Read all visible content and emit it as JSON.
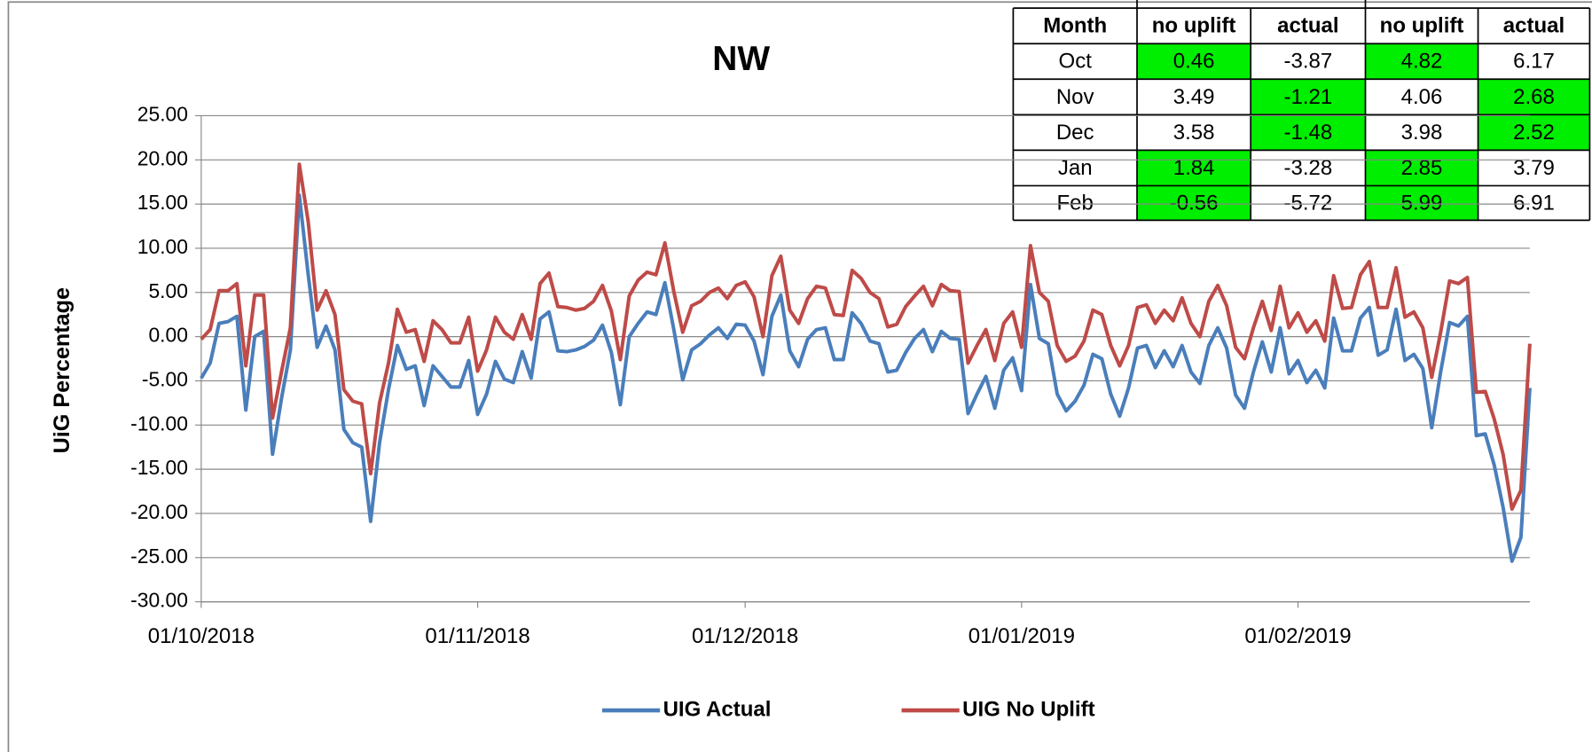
{
  "chart_data": {
    "type": "line",
    "title": "NW",
    "y_label": "UiG Percentage",
    "x": [
      "01/10/2018",
      "02/10/2018",
      "03/10/2018",
      "04/10/2018",
      "05/10/2018",
      "06/10/2018",
      "07/10/2018",
      "08/10/2018",
      "09/10/2018",
      "10/10/2018",
      "11/10/2018",
      "12/10/2018",
      "13/10/2018",
      "14/10/2018",
      "15/10/2018",
      "16/10/2018",
      "17/10/2018",
      "18/10/2018",
      "19/10/2018",
      "20/10/2018",
      "21/10/2018",
      "22/10/2018",
      "23/10/2018",
      "24/10/2018",
      "25/10/2018",
      "26/10/2018",
      "27/10/2018",
      "28/10/2018",
      "29/10/2018",
      "30/10/2018",
      "31/10/2018",
      "01/11/2018",
      "02/11/2018",
      "03/11/2018",
      "04/11/2018",
      "05/11/2018",
      "06/11/2018",
      "07/11/2018",
      "08/11/2018",
      "09/11/2018",
      "10/11/2018",
      "11/11/2018",
      "12/11/2018",
      "13/11/2018",
      "14/11/2018",
      "15/11/2018",
      "16/11/2018",
      "17/11/2018",
      "18/11/2018",
      "19/11/2018",
      "20/11/2018",
      "21/11/2018",
      "22/11/2018",
      "23/11/2018",
      "24/11/2018",
      "25/11/2018",
      "26/11/2018",
      "27/11/2018",
      "28/11/2018",
      "29/11/2018",
      "30/11/2018",
      "01/12/2018",
      "02/12/2018",
      "03/12/2018",
      "04/12/2018",
      "05/12/2018",
      "06/12/2018",
      "07/12/2018",
      "08/12/2018",
      "09/12/2018",
      "10/12/2018",
      "11/12/2018",
      "12/12/2018",
      "13/12/2018",
      "14/12/2018",
      "15/12/2018",
      "16/12/2018",
      "17/12/2018",
      "18/12/2018",
      "19/12/2018",
      "20/12/2018",
      "21/12/2018",
      "22/12/2018",
      "23/12/2018",
      "24/12/2018",
      "25/12/2018",
      "26/12/2018",
      "27/12/2018",
      "28/12/2018",
      "29/12/2018",
      "30/12/2018",
      "31/12/2018",
      "01/01/2019",
      "02/01/2019",
      "03/01/2019",
      "04/01/2019",
      "05/01/2019",
      "06/01/2019",
      "07/01/2019",
      "08/01/2019",
      "09/01/2019",
      "10/01/2019",
      "11/01/2019",
      "12/01/2019",
      "13/01/2019",
      "14/01/2019",
      "15/01/2019",
      "16/01/2019",
      "17/01/2019",
      "18/01/2019",
      "19/01/2019",
      "20/01/2019",
      "21/01/2019",
      "22/01/2019",
      "23/01/2019",
      "24/01/2019",
      "25/01/2019",
      "26/01/2019",
      "27/01/2019",
      "28/01/2019",
      "29/01/2019",
      "30/01/2019",
      "31/01/2019",
      "01/02/2019",
      "02/02/2019",
      "03/02/2019",
      "04/02/2019",
      "05/02/2019",
      "06/02/2019",
      "07/02/2019",
      "08/02/2019",
      "09/02/2019",
      "10/02/2019",
      "11/02/2019",
      "12/02/2019",
      "13/02/2019",
      "14/02/2019",
      "15/02/2019",
      "16/02/2019",
      "17/02/2019",
      "18/02/2019",
      "19/02/2019",
      "20/02/2019",
      "21/02/2019",
      "22/02/2019",
      "23/02/2019",
      "24/02/2019",
      "25/02/2019",
      "26/02/2019",
      "27/02/2019"
    ],
    "series": [
      {
        "name": "UIG Actual",
        "color": "#4a7ebb",
        "values": [
          -4.7,
          -3,
          1.5,
          1.7,
          2.3,
          -8.3,
          0,
          0.6,
          -13.3,
          -7,
          -1.5,
          16,
          7,
          -1.2,
          1.2,
          -1.5,
          -10.5,
          -12,
          -12.5,
          -20.9,
          -12,
          -6,
          -1,
          -3.7,
          -3.3,
          -7.8,
          -3.3,
          -4.5,
          -5.7,
          -5.7,
          -2.7,
          -8.8,
          -6.5,
          -2.8,
          -4.8,
          -5.2,
          -1.7,
          -4.7,
          2,
          2.8,
          -1.6,
          -1.7,
          -1.5,
          -1.1,
          -0.4,
          1.3,
          -1.8,
          -7.7,
          0,
          1.5,
          2.8,
          2.5,
          6.1,
          0.8,
          -4.9,
          -1.5,
          -0.8,
          0.2,
          1,
          -0.2,
          1.4,
          1.3,
          -0.5,
          -4.3,
          2.3,
          4.7,
          -1.6,
          -3.4,
          -0.3,
          0.8,
          1,
          -2.6,
          -2.6,
          2.7,
          1.5,
          -0.5,
          -0.8,
          -4,
          -3.8,
          -1.8,
          -0.2,
          0.8,
          -1.7,
          0.6,
          -0.2,
          -0.3,
          -8.7,
          -6.5,
          -4.5,
          -8.1,
          -3.8,
          -2.4,
          -6.1,
          5.9,
          -0.2,
          -0.8,
          -6.5,
          -8.4,
          -7.3,
          -5.5,
          -2,
          -2.5,
          -6.5,
          -9,
          -5.8,
          -1.3,
          -1,
          -3.5,
          -1.6,
          -3.4,
          -1,
          -4,
          -5.3,
          -1,
          1,
          -1.3,
          -6.6,
          -8.1,
          -4,
          -0.6,
          -4,
          1,
          -4.2,
          -2.7,
          -5.2,
          -3.8,
          -5.8,
          2.1,
          -1.6,
          -1.6,
          2.1,
          3.3,
          -2.1,
          -1.5,
          3.1,
          -2.7,
          -2,
          -3.6,
          -10.3,
          -4,
          1.6,
          1.2,
          2.3,
          -11.2,
          -11,
          -14.5,
          -19.3,
          -25.4,
          -22.7,
          -5.8
        ]
      },
      {
        "name": "UIG No Uplift",
        "color": "#be4b48",
        "values": [
          -0.3,
          0.8,
          5.2,
          5.2,
          6,
          -3.3,
          4.7,
          4.7,
          -9.2,
          -4,
          1,
          19.5,
          13,
          3,
          5.2,
          2.5,
          -6,
          -7.3,
          -7.6,
          -15.5,
          -7.5,
          -3,
          3.1,
          0.5,
          0.8,
          -2.8,
          1.8,
          0.8,
          -0.7,
          -0.7,
          2.2,
          -3.9,
          -1.5,
          2.2,
          0.5,
          -0.3,
          2.5,
          -0.3,
          6,
          7.2,
          3.4,
          3.3,
          3,
          3.2,
          4,
          5.8,
          2.9,
          -2.6,
          4.6,
          6.4,
          7.3,
          7,
          10.6,
          5.1,
          0.5,
          3.5,
          4,
          5,
          5.5,
          4.3,
          5.8,
          6.2,
          4.5,
          0,
          6.9,
          9.1,
          3,
          1.5,
          4.3,
          5.7,
          5.5,
          2.5,
          2.4,
          7.5,
          6.6,
          5,
          4.3,
          1.1,
          1.4,
          3.4,
          4.6,
          5.7,
          3.5,
          5.9,
          5.2,
          5.1,
          -3,
          -1,
          0.8,
          -2.7,
          1.5,
          2.8,
          -1.2,
          10.3,
          5,
          4,
          -1,
          -2.8,
          -2.2,
          -0.5,
          3,
          2.5,
          -1,
          -3.3,
          -1,
          3.3,
          3.6,
          1.5,
          3,
          1.8,
          4.4,
          1.5,
          0,
          4,
          5.8,
          3.5,
          -1.2,
          -2.5,
          1,
          4,
          0.7,
          5.7,
          1,
          2.7,
          0.5,
          1.8,
          -0.5,
          6.9,
          3.2,
          3.3,
          7,
          8.5,
          3.3,
          3.3,
          7.8,
          2.2,
          2.8,
          1,
          -4.6,
          0.5,
          6.3,
          6,
          6.7,
          -6.3,
          -6.2,
          -9.3,
          -13.3,
          -19.5,
          -17.4,
          -0.8
        ]
      }
    ],
    "xlim": [
      "01/10/2018",
      "27/02/2019"
    ],
    "xticks": [
      "01/10/2018",
      "01/11/2018",
      "01/12/2018",
      "01/01/2019",
      "01/02/2019"
    ],
    "ylim": [
      -30,
      25
    ],
    "yticks": [
      {
        "value": -30,
        "label": "-30.00"
      },
      {
        "value": -25,
        "label": "-25.00"
      },
      {
        "value": -20,
        "label": "-20.00"
      },
      {
        "value": -15,
        "label": "-15.00"
      },
      {
        "value": -10,
        "label": "-10.00"
      },
      {
        "value": -5,
        "label": "-5.00"
      },
      {
        "value": 0,
        "label": "0.00"
      },
      {
        "value": 5,
        "label": "5.00"
      },
      {
        "value": 10,
        "label": "10.00"
      },
      {
        "value": 15,
        "label": "15.00"
      },
      {
        "value": 20,
        "label": "20.00"
      },
      {
        "value": 25,
        "label": "25.00"
      }
    ],
    "grid": true,
    "legend": "bottom"
  },
  "table": {
    "highlight_color": "#00ee00",
    "header": [
      "Month",
      "no uplift",
      "actual",
      "no uplift",
      "actual"
    ],
    "rows": [
      [
        {
          "text": "Oct",
          "highlight": false
        },
        {
          "text": "0.46",
          "highlight": true
        },
        {
          "text": "-3.87",
          "highlight": false
        },
        {
          "text": "4.82",
          "highlight": true
        },
        {
          "text": "6.17",
          "highlight": false
        }
      ],
      [
        {
          "text": "Nov",
          "highlight": false
        },
        {
          "text": "3.49",
          "highlight": false
        },
        {
          "text": "-1.21",
          "highlight": true
        },
        {
          "text": "4.06",
          "highlight": false
        },
        {
          "text": "2.68",
          "highlight": true
        }
      ],
      [
        {
          "text": "Dec",
          "highlight": false
        },
        {
          "text": "3.58",
          "highlight": false
        },
        {
          "text": "-1.48",
          "highlight": true
        },
        {
          "text": "3.98",
          "highlight": false
        },
        {
          "text": "2.52",
          "highlight": true
        }
      ],
      [
        {
          "text": "Jan",
          "highlight": false
        },
        {
          "text": "1.84",
          "highlight": true
        },
        {
          "text": "-3.28",
          "highlight": false
        },
        {
          "text": "2.85",
          "highlight": true
        },
        {
          "text": "3.79",
          "highlight": false
        }
      ],
      [
        {
          "text": "Feb",
          "highlight": false
        },
        {
          "text": "-0.56",
          "highlight": true
        },
        {
          "text": "-5.72",
          "highlight": false
        },
        {
          "text": "5.99",
          "highlight": true
        },
        {
          "text": "6.91",
          "highlight": false
        }
      ]
    ]
  }
}
